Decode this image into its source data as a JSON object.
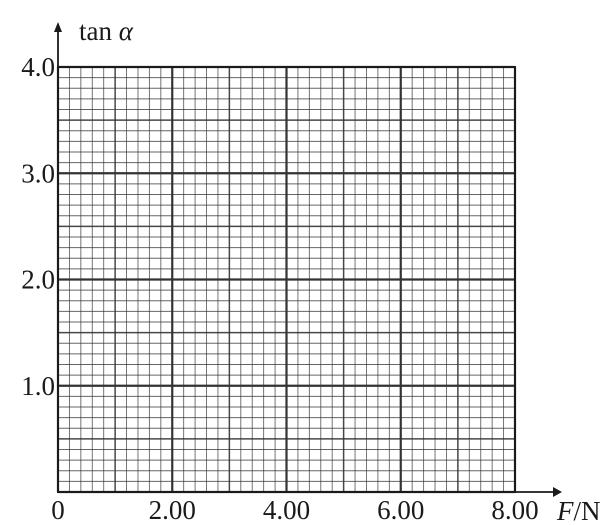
{
  "chart_data": {
    "type": "scatter",
    "title": "",
    "xlabel_var": "F",
    "xlabel_unit": "/N",
    "ylabel_func": "tan ",
    "ylabel_var": "α",
    "xlim": [
      0,
      8.0
    ],
    "ylim": [
      0,
      4.0
    ],
    "x_ticks": [
      {
        "value": 0,
        "label": "0"
      },
      {
        "value": 2.0,
        "label": "2.00"
      },
      {
        "value": 4.0,
        "label": "4.00"
      },
      {
        "value": 6.0,
        "label": "6.00"
      },
      {
        "value": 8.0,
        "label": "8.00"
      }
    ],
    "y_ticks": [
      {
        "value": 1.0,
        "label": "1.0"
      },
      {
        "value": 2.0,
        "label": "2.0"
      },
      {
        "value": 3.0,
        "label": "3.0"
      },
      {
        "value": 4.0,
        "label": "4.0"
      }
    ],
    "grid": true,
    "grid_minor_step_x": 0.2,
    "grid_minor_step_y": 0.1,
    "series": [],
    "colors": {
      "ink": "#1a1a1a",
      "grid": "#333333",
      "background": "#ffffff"
    }
  }
}
